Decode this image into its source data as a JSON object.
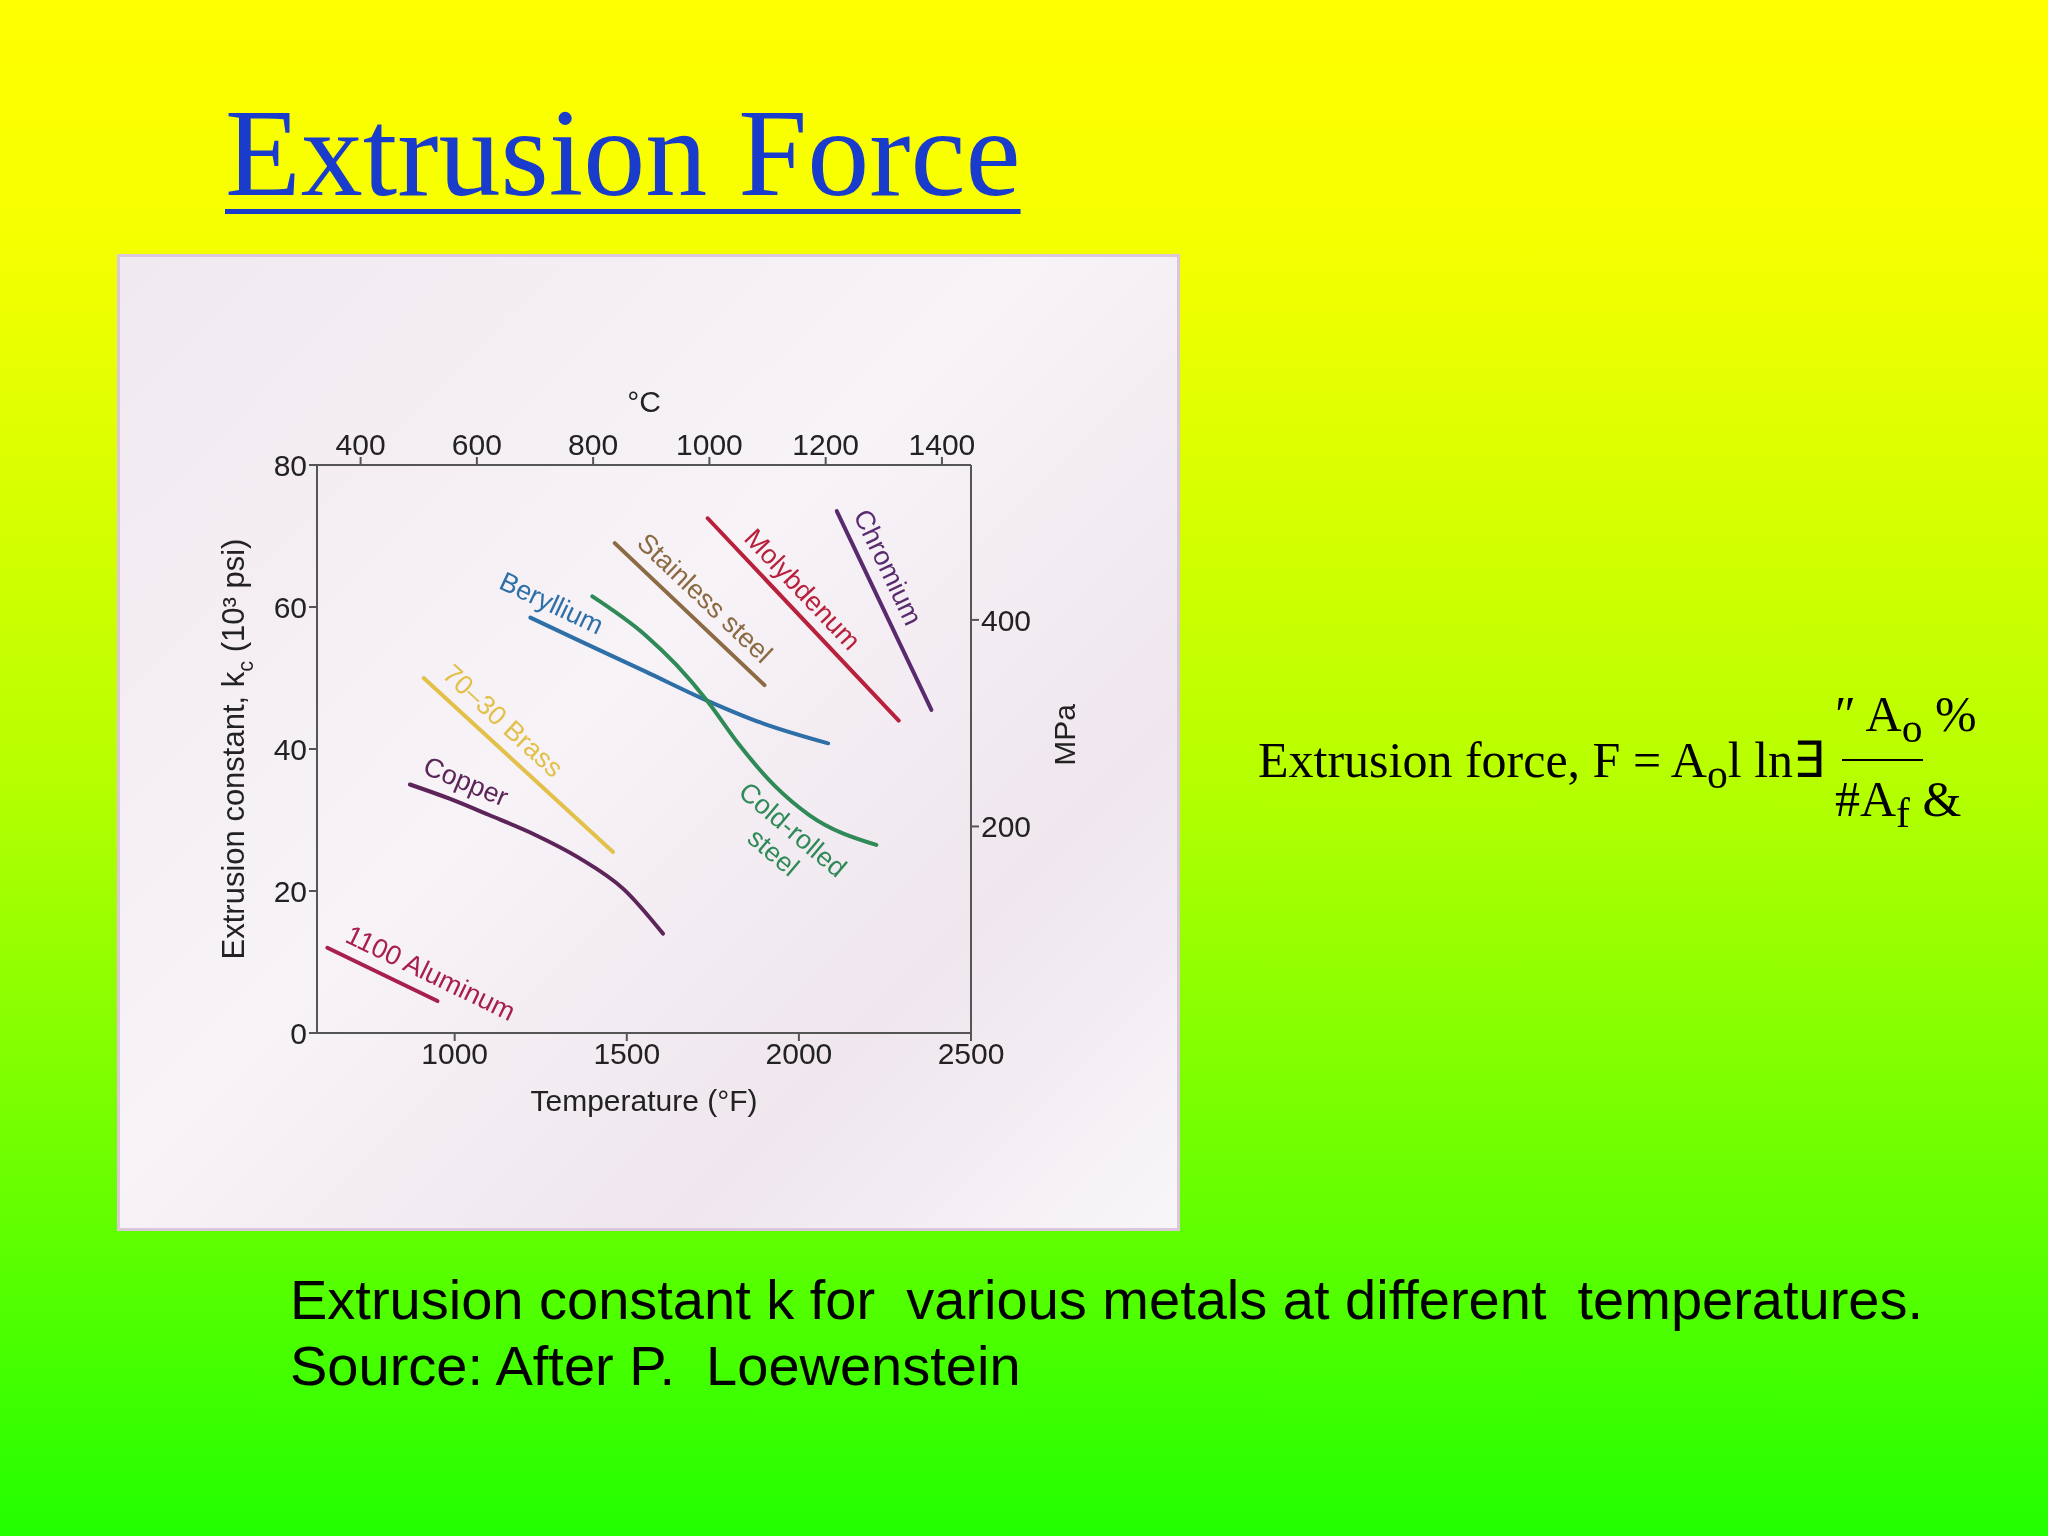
{
  "chart_data": {
    "type": "line",
    "title": "Extrusion Force",
    "xlabel": "Temperature (°F)",
    "x2label": "°C",
    "ylabel": "Extrusion constant, k$_{c}$ (10³ psi)",
    "y2label": "MPa",
    "xlim": [
      600,
      2500
    ],
    "xticks": [
      1000,
      1500,
      2000,
      2500
    ],
    "x2lim": [
      325,
      1450
    ],
    "x2ticks": [
      400,
      600,
      800,
      1000,
      1200,
      1400
    ],
    "ylim": [
      0,
      80
    ],
    "yticks": [
      0,
      20,
      40,
      60,
      80
    ],
    "y2lim": [
      0,
      550
    ],
    "y2ticks": [
      200,
      400
    ],
    "series": [
      {
        "name": "1100 Aluminum",
        "color": "#a81e4e",
        "x": [
          630,
          950
        ],
        "values": [
          12,
          4.5
        ]
      },
      {
        "name": "Copper",
        "color": "#5c2458",
        "x": [
          870,
          985,
          1100,
          1230,
          1360,
          1490,
          1605
        ],
        "values": [
          35,
          33,
          30.7,
          28,
          24.7,
          20.3,
          14
        ]
      },
      {
        "name": "70–30 Brass",
        "color": "#e2c04a",
        "x": [
          910,
          1460
        ],
        "values": [
          50,
          25.5
        ]
      },
      {
        "name": "Beryllium",
        "color": "#2e6fa8",
        "x": [
          1220,
          1360,
          1555,
          1725,
          1890,
          2085
        ],
        "values": [
          58.5,
          55.3,
          50.9,
          47,
          43.7,
          40.8
        ]
      },
      {
        "name": "Stainless steel",
        "color": "#8b6a44",
        "x": [
          1465,
          1900
        ],
        "values": [
          69,
          49
        ]
      },
      {
        "name": "Molybdenum",
        "color": "#b8203c",
        "x": [
          1735,
          2290
        ],
        "values": [
          72.5,
          44
        ]
      },
      {
        "name": "Chromium",
        "color": "#5a2a6e",
        "x": [
          2110,
          2385
        ],
        "values": [
          73.5,
          45.5
        ]
      },
      {
        "name": "Cold-rolled steel",
        "color": "#2f8a57",
        "x": [
          1400,
          1555,
          1645,
          1735,
          1825,
          1930,
          2030,
          2225
        ],
        "values": [
          61.5,
          56,
          51.8,
          46.7,
          40.7,
          34.8,
          30.7,
          26.5
        ]
      }
    ],
    "annotations": [
      "Extrusion force, F = A$_{o}$l ln∃",
      "″ A$_{o}$ %",
      "#A$_{f}$ &",
      "Extrusion constant k for  various metals at different  temperatures.",
      "Source: After P.  Loewenstein"
    ]
  }
}
